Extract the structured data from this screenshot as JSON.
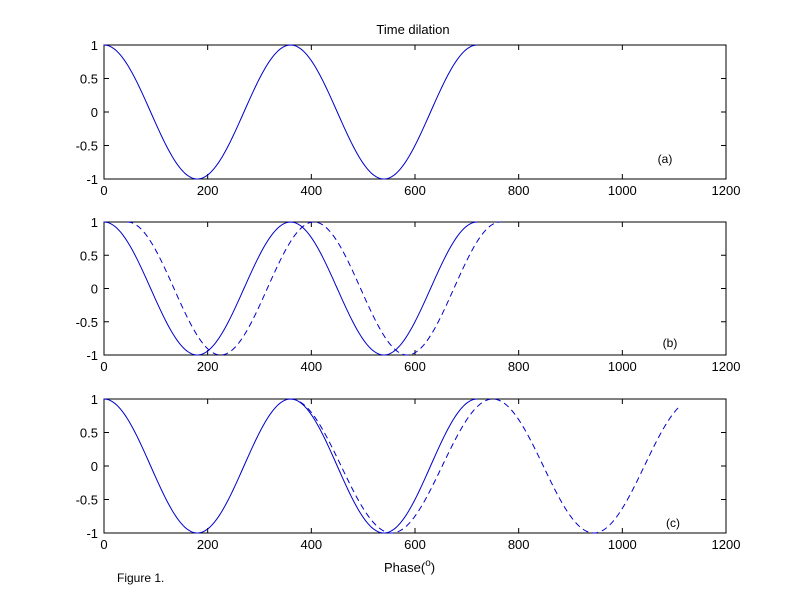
{
  "figure": {
    "title": "Time dilation",
    "xlabel_text": "Phase(",
    "xlabel_unit": "o",
    "xlabel_close": ")",
    "caption": "Figure 1.",
    "line_color": "#0000cc"
  },
  "chart_data": [
    {
      "type": "line",
      "panel_label": "(a)",
      "xlim": [
        0,
        1200
      ],
      "ylim": [
        -1,
        1
      ],
      "xticks": [
        "0",
        "200",
        "400",
        "600",
        "800",
        "1000",
        "1200"
      ],
      "yticks": [
        "1",
        "0.5",
        "0",
        "-0.5",
        "-1"
      ],
      "grid": false,
      "series": [
        {
          "style": "solid",
          "function": "cos",
          "x_start": 0,
          "x_end": 720,
          "period": 360
        }
      ]
    },
    {
      "type": "line",
      "panel_label": "(b)",
      "xlim": [
        0,
        1200
      ],
      "ylim": [
        -1,
        1
      ],
      "xticks": [
        "0",
        "200",
        "400",
        "600",
        "800",
        "1000",
        "1200"
      ],
      "yticks": [
        "1",
        "0.5",
        "0",
        "-0.5",
        "-1"
      ],
      "grid": false,
      "series": [
        {
          "style": "solid",
          "function": "cos",
          "x_start": 0,
          "x_end": 720,
          "period": 360
        },
        {
          "style": "dashed",
          "function": "cos",
          "x_start": 45,
          "x_end": 765,
          "period": 360
        }
      ]
    },
    {
      "type": "line",
      "panel_label": "(c)",
      "xlim": [
        0,
        1200
      ],
      "ylim": [
        -1,
        1
      ],
      "xticks": [
        "0",
        "200",
        "400",
        "600",
        "800",
        "1000",
        "1200"
      ],
      "yticks": [
        "1",
        "0.5",
        "0",
        "-0.5",
        "-1"
      ],
      "grid": false,
      "series": [
        {
          "style": "solid",
          "function": "cos",
          "x_start": 0,
          "x_end": 720,
          "period": 360
        },
        {
          "style": "dashed",
          "function": "cos",
          "x_start": 360,
          "x_end": 1110,
          "period": 390
        }
      ]
    }
  ]
}
